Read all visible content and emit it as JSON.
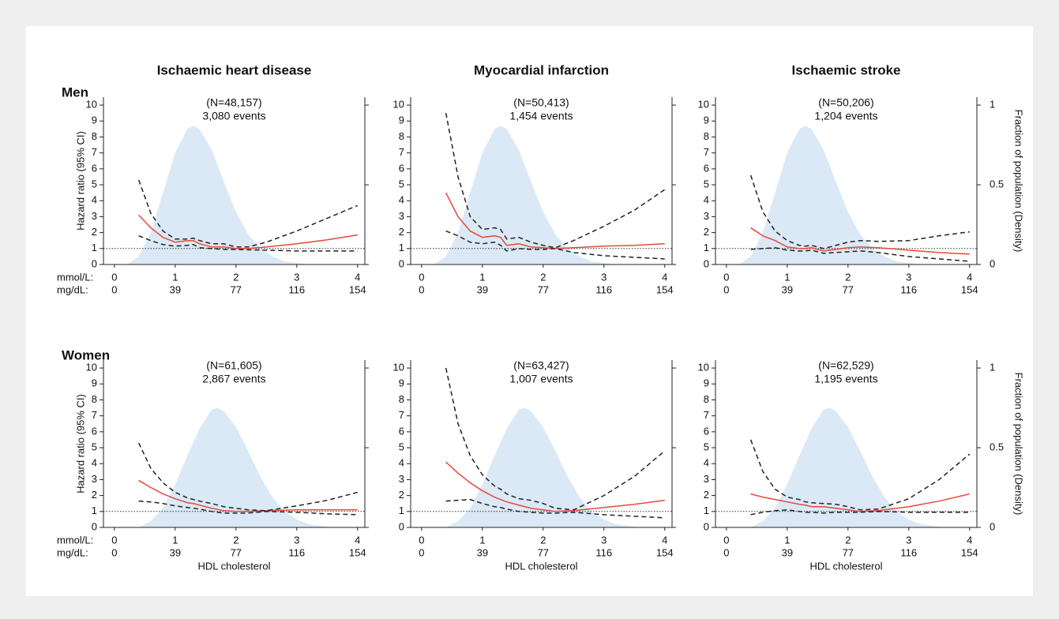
{
  "chart_data": [
    {
      "type": "line",
      "column_title": "Ischaemic heart disease",
      "row_label": "Men",
      "annotations": [
        "(N=48,157)",
        "3,080 events"
      ],
      "ylabel": "Hazard ratio (95% CI)",
      "x_unit_labels": [
        "mmol/L:",
        "mg/dL:"
      ],
      "x": [
        0.4,
        0.6,
        0.8,
        1.0,
        1.2,
        1.3,
        1.4,
        1.6,
        1.8,
        2.0,
        2.2,
        2.5,
        3.0,
        3.5,
        4.0
      ],
      "series": [
        {
          "color": "#e8483c",
          "dash": false,
          "values": [
            3.1,
            2.3,
            1.7,
            1.4,
            1.5,
            1.5,
            1.3,
            1.1,
            1.1,
            1.0,
            1.0,
            1.1,
            1.3,
            1.55,
            1.85
          ]
        },
        {
          "color": "#222222",
          "dash": true,
          "values": [
            5.3,
            3.2,
            2.1,
            1.6,
            1.6,
            1.65,
            1.5,
            1.3,
            1.3,
            1.1,
            1.1,
            1.4,
            2.1,
            2.9,
            3.7
          ]
        },
        {
          "color": "#222222",
          "dash": true,
          "values": [
            1.8,
            1.5,
            1.25,
            1.15,
            1.2,
            1.25,
            1.05,
            1.0,
            0.95,
            0.95,
            0.92,
            0.9,
            0.85,
            0.85,
            0.85
          ]
        },
        {
          "type": "area",
          "axis": "y2",
          "color": "#dbe9f6",
          "x": [
            0.2,
            0.4,
            0.6,
            0.8,
            1.0,
            1.2,
            1.3,
            1.4,
            1.6,
            1.8,
            2.0,
            2.2,
            2.4,
            2.6,
            2.8,
            3.0,
            3.2,
            3.4
          ],
          "values": [
            0,
            0.05,
            0.2,
            0.45,
            0.7,
            0.85,
            0.87,
            0.85,
            0.72,
            0.52,
            0.33,
            0.19,
            0.1,
            0.05,
            0.02,
            0.01,
            0,
            0
          ]
        }
      ],
      "hline": 1,
      "xlim": [
        -0.18,
        4.12
      ],
      "xticks": [
        0,
        1,
        2,
        3,
        4
      ],
      "x2ticks": [
        {
          "value": 0,
          "label": "0"
        },
        {
          "value": 1,
          "label": "39"
        },
        {
          "value": 2,
          "label": "77"
        },
        {
          "value": 3,
          "label": "116"
        },
        {
          "value": 4,
          "label": "154"
        }
      ],
      "ylim": [
        0,
        10.5
      ],
      "yticks": [
        0,
        1,
        2,
        3,
        4,
        5,
        6,
        7,
        8,
        9,
        10
      ],
      "y2lim": [
        0,
        1.05
      ],
      "y2ticks": [
        0,
        0.5,
        1
      ]
    },
    {
      "type": "line",
      "column_title": "Myocardial infarction",
      "annotations": [
        "(N=50,413)",
        "1,454 events"
      ],
      "x": [
        0.4,
        0.6,
        0.8,
        1.0,
        1.2,
        1.3,
        1.4,
        1.6,
        1.8,
        2.0,
        2.2,
        2.5,
        3.0,
        3.5,
        4.0
      ],
      "series": [
        {
          "color": "#e8483c",
          "dash": false,
          "values": [
            4.5,
            3.0,
            2.1,
            1.7,
            1.8,
            1.7,
            1.2,
            1.3,
            1.1,
            1.05,
            1.0,
            1.05,
            1.15,
            1.2,
            1.3
          ]
        },
        {
          "color": "#222222",
          "dash": true,
          "values": [
            9.5,
            5.5,
            3.0,
            2.2,
            2.3,
            2.2,
            1.6,
            1.7,
            1.4,
            1.2,
            1.05,
            1.5,
            2.4,
            3.4,
            4.7
          ]
        },
        {
          "color": "#222222",
          "dash": true,
          "values": [
            2.1,
            1.8,
            1.4,
            1.3,
            1.4,
            1.2,
            0.85,
            1.0,
            0.95,
            0.95,
            1.0,
            0.75,
            0.55,
            0.45,
            0.35
          ]
        },
        {
          "type": "area",
          "axis": "y2",
          "color": "#dbe9f6",
          "x": [
            0.2,
            0.4,
            0.6,
            0.8,
            1.0,
            1.2,
            1.3,
            1.4,
            1.6,
            1.8,
            2.0,
            2.2,
            2.4,
            2.6,
            2.8,
            3.0,
            3.2,
            3.4
          ],
          "values": [
            0,
            0.05,
            0.2,
            0.45,
            0.7,
            0.85,
            0.87,
            0.85,
            0.72,
            0.52,
            0.33,
            0.19,
            0.1,
            0.05,
            0.02,
            0.01,
            0,
            0
          ]
        }
      ],
      "hline": 1,
      "xlim": [
        -0.18,
        4.12
      ],
      "xticks": [
        0,
        1,
        2,
        3,
        4
      ],
      "x2ticks": [
        {
          "value": 0,
          "label": "0"
        },
        {
          "value": 1,
          "label": "39"
        },
        {
          "value": 2,
          "label": "77"
        },
        {
          "value": 3,
          "label": "116"
        },
        {
          "value": 4,
          "label": "154"
        }
      ],
      "ylim": [
        0,
        10.5
      ],
      "yticks": [
        0,
        1,
        2,
        3,
        4,
        5,
        6,
        7,
        8,
        9,
        10
      ],
      "y2lim": [
        0,
        1.05
      ],
      "y2ticks": [
        0,
        0.5,
        1
      ]
    },
    {
      "type": "line",
      "column_title": "Ischaemic stroke",
      "annotations": [
        "(N=50,206)",
        "1,204 events"
      ],
      "y2label": "Fraction of population (Density)",
      "x": [
        0.4,
        0.6,
        0.8,
        1.0,
        1.2,
        1.3,
        1.4,
        1.6,
        1.8,
        2.0,
        2.2,
        2.5,
        3.0,
        3.5,
        4.0
      ],
      "series": [
        {
          "color": "#e8483c",
          "dash": false,
          "values": [
            2.3,
            1.8,
            1.5,
            1.1,
            1.0,
            1.0,
            1.05,
            0.85,
            0.95,
            1.05,
            1.1,
            1.05,
            0.9,
            0.75,
            0.65
          ]
        },
        {
          "color": "#222222",
          "dash": true,
          "values": [
            5.6,
            3.3,
            2.1,
            1.5,
            1.2,
            1.15,
            1.2,
            1.0,
            1.2,
            1.4,
            1.5,
            1.45,
            1.5,
            1.8,
            2.05
          ]
        },
        {
          "color": "#222222",
          "dash": true,
          "values": [
            0.95,
            1.0,
            1.05,
            0.9,
            0.85,
            0.85,
            0.9,
            0.7,
            0.75,
            0.8,
            0.85,
            0.75,
            0.5,
            0.35,
            0.2
          ]
        },
        {
          "type": "area",
          "axis": "y2",
          "color": "#dbe9f6",
          "x": [
            0.2,
            0.4,
            0.6,
            0.8,
            1.0,
            1.2,
            1.3,
            1.4,
            1.6,
            1.8,
            2.0,
            2.2,
            2.4,
            2.6,
            2.8,
            3.0,
            3.2,
            3.4
          ],
          "values": [
            0,
            0.05,
            0.2,
            0.45,
            0.7,
            0.85,
            0.87,
            0.85,
            0.72,
            0.52,
            0.33,
            0.19,
            0.1,
            0.05,
            0.02,
            0.01,
            0,
            0
          ]
        }
      ],
      "hline": 1,
      "xlim": [
        -0.18,
        4.12
      ],
      "xticks": [
        0,
        1,
        2,
        3,
        4
      ],
      "x2ticks": [
        {
          "value": 0,
          "label": "0"
        },
        {
          "value": 1,
          "label": "39"
        },
        {
          "value": 2,
          "label": "77"
        },
        {
          "value": 3,
          "label": "116"
        },
        {
          "value": 4,
          "label": "154"
        }
      ],
      "ylim": [
        0,
        10.5
      ],
      "yticks": [
        0,
        1,
        2,
        3,
        4,
        5,
        6,
        7,
        8,
        9,
        10
      ],
      "y2lim": [
        0,
        1.05
      ],
      "y2ticks": [
        0,
        0.5,
        1
      ]
    },
    {
      "type": "line",
      "row_label": "Women",
      "annotations": [
        "(N=61,605)",
        "2,867 events"
      ],
      "ylabel": "Hazard ratio (95% CI)",
      "x_unit_labels": [
        "mmol/L:",
        "mg/dL:"
      ],
      "xlabel": "HDL cholesterol",
      "x": [
        0.4,
        0.6,
        0.8,
        1.0,
        1.2,
        1.3,
        1.4,
        1.6,
        1.8,
        2.0,
        2.2,
        2.5,
        3.0,
        3.5,
        4.0
      ],
      "series": [
        {
          "color": "#e8483c",
          "dash": false,
          "values": [
            2.95,
            2.5,
            2.1,
            1.8,
            1.55,
            1.5,
            1.4,
            1.2,
            1.05,
            1.0,
            1.0,
            1.05,
            1.1,
            1.1,
            1.1
          ]
        },
        {
          "color": "#222222",
          "dash": true,
          "values": [
            5.3,
            3.7,
            2.8,
            2.2,
            1.85,
            1.75,
            1.65,
            1.5,
            1.3,
            1.2,
            1.1,
            1.05,
            1.35,
            1.7,
            2.2
          ]
        },
        {
          "color": "#222222",
          "dash": true,
          "values": [
            1.65,
            1.6,
            1.5,
            1.35,
            1.25,
            1.2,
            1.15,
            1.0,
            0.9,
            0.9,
            0.9,
            1.0,
            0.95,
            0.85,
            0.8
          ]
        },
        {
          "type": "area",
          "axis": "y2",
          "color": "#dbe9f6",
          "x": [
            0.4,
            0.6,
            0.8,
            1.0,
            1.2,
            1.4,
            1.6,
            1.7,
            1.8,
            2.0,
            2.2,
            2.4,
            2.6,
            2.8,
            3.0,
            3.2,
            3.4,
            3.6
          ],
          "values": [
            0,
            0.04,
            0.12,
            0.27,
            0.45,
            0.62,
            0.74,
            0.75,
            0.73,
            0.63,
            0.48,
            0.32,
            0.19,
            0.1,
            0.05,
            0.02,
            0.01,
            0
          ]
        }
      ],
      "hline": 1,
      "xlim": [
        -0.18,
        4.12
      ],
      "xticks": [
        0,
        1,
        2,
        3,
        4
      ],
      "x2ticks": [
        {
          "value": 0,
          "label": "0"
        },
        {
          "value": 1,
          "label": "39"
        },
        {
          "value": 2,
          "label": "77"
        },
        {
          "value": 3,
          "label": "116"
        },
        {
          "value": 4,
          "label": "154"
        }
      ],
      "ylim": [
        0,
        10.5
      ],
      "yticks": [
        0,
        1,
        2,
        3,
        4,
        5,
        6,
        7,
        8,
        9,
        10
      ],
      "y2lim": [
        0,
        1.05
      ],
      "y2ticks": [
        0,
        0.5,
        1
      ]
    },
    {
      "type": "line",
      "annotations": [
        "(N=63,427)",
        "1,007 events"
      ],
      "xlabel": "HDL cholesterol",
      "x": [
        0.4,
        0.6,
        0.8,
        1.0,
        1.2,
        1.3,
        1.4,
        1.6,
        1.8,
        2.0,
        2.2,
        2.5,
        3.0,
        3.5,
        4.0
      ],
      "series": [
        {
          "color": "#e8483c",
          "dash": false,
          "values": [
            4.1,
            3.4,
            2.8,
            2.3,
            1.9,
            1.75,
            1.6,
            1.4,
            1.2,
            1.1,
            1.0,
            1.05,
            1.25,
            1.45,
            1.7
          ]
        },
        {
          "color": "#222222",
          "dash": true,
          "values": [
            10.0,
            6.5,
            4.5,
            3.3,
            2.6,
            2.4,
            2.1,
            1.8,
            1.7,
            1.5,
            1.2,
            1.1,
            2.0,
            3.2,
            4.8
          ]
        },
        {
          "color": "#222222",
          "dash": true,
          "values": [
            1.65,
            1.7,
            1.75,
            1.5,
            1.3,
            1.25,
            1.15,
            1.0,
            0.95,
            0.9,
            0.9,
            0.95,
            0.8,
            0.7,
            0.6
          ]
        },
        {
          "type": "area",
          "axis": "y2",
          "color": "#dbe9f6",
          "x": [
            0.4,
            0.6,
            0.8,
            1.0,
            1.2,
            1.4,
            1.6,
            1.7,
            1.8,
            2.0,
            2.2,
            2.4,
            2.6,
            2.8,
            3.0,
            3.2,
            3.4,
            3.6
          ],
          "values": [
            0,
            0.04,
            0.12,
            0.27,
            0.45,
            0.62,
            0.74,
            0.75,
            0.73,
            0.63,
            0.48,
            0.32,
            0.19,
            0.1,
            0.05,
            0.02,
            0.01,
            0
          ]
        }
      ],
      "hline": 1,
      "xlim": [
        -0.18,
        4.12
      ],
      "xticks": [
        0,
        1,
        2,
        3,
        4
      ],
      "x2ticks": [
        {
          "value": 0,
          "label": "0"
        },
        {
          "value": 1,
          "label": "39"
        },
        {
          "value": 2,
          "label": "77"
        },
        {
          "value": 3,
          "label": "116"
        },
        {
          "value": 4,
          "label": "154"
        }
      ],
      "ylim": [
        0,
        10.5
      ],
      "yticks": [
        0,
        1,
        2,
        3,
        4,
        5,
        6,
        7,
        8,
        9,
        10
      ],
      "y2lim": [
        0,
        1.05
      ],
      "y2ticks": [
        0,
        0.5,
        1
      ]
    },
    {
      "type": "line",
      "annotations": [
        "(N=62,529)",
        "1,195 events"
      ],
      "y2label": "Fraction of population (Density)",
      "xlabel": "HDL cholesterol",
      "x": [
        0.4,
        0.6,
        0.8,
        1.0,
        1.2,
        1.3,
        1.4,
        1.6,
        1.8,
        2.0,
        2.2,
        2.5,
        3.0,
        3.5,
        4.0
      ],
      "series": [
        {
          "color": "#e8483c",
          "dash": false,
          "values": [
            2.1,
            1.9,
            1.75,
            1.6,
            1.45,
            1.4,
            1.3,
            1.3,
            1.2,
            1.1,
            1.0,
            1.05,
            1.3,
            1.65,
            2.1
          ]
        },
        {
          "color": "#222222",
          "dash": true,
          "values": [
            5.5,
            3.5,
            2.4,
            1.9,
            1.75,
            1.6,
            1.55,
            1.5,
            1.45,
            1.3,
            1.1,
            1.15,
            1.8,
            3.0,
            4.6
          ]
        },
        {
          "color": "#222222",
          "dash": true,
          "values": [
            0.8,
            0.95,
            1.05,
            1.1,
            1.0,
            0.95,
            0.95,
            0.9,
            0.95,
            0.95,
            0.95,
            1.0,
            0.95,
            0.95,
            0.95
          ]
        },
        {
          "type": "area",
          "axis": "y2",
          "color": "#dbe9f6",
          "x": [
            0.4,
            0.6,
            0.8,
            1.0,
            1.2,
            1.4,
            1.6,
            1.7,
            1.8,
            2.0,
            2.2,
            2.4,
            2.6,
            2.8,
            3.0,
            3.2,
            3.4,
            3.6
          ],
          "values": [
            0,
            0.04,
            0.12,
            0.27,
            0.45,
            0.62,
            0.74,
            0.75,
            0.73,
            0.63,
            0.48,
            0.32,
            0.19,
            0.1,
            0.05,
            0.02,
            0.01,
            0
          ]
        }
      ],
      "hline": 1,
      "xlim": [
        -0.18,
        4.12
      ],
      "xticks": [
        0,
        1,
        2,
        3,
        4
      ],
      "x2ticks": [
        {
          "value": 0,
          "label": "0"
        },
        {
          "value": 1,
          "label": "39"
        },
        {
          "value": 2,
          "label": "77"
        },
        {
          "value": 3,
          "label": "116"
        },
        {
          "value": 4,
          "label": "154"
        }
      ],
      "ylim": [
        0,
        10.5
      ],
      "yticks": [
        0,
        1,
        2,
        3,
        4,
        5,
        6,
        7,
        8,
        9,
        10
      ],
      "y2lim": [
        0,
        1.05
      ],
      "y2ticks": [
        0,
        0.5,
        1
      ]
    }
  ]
}
